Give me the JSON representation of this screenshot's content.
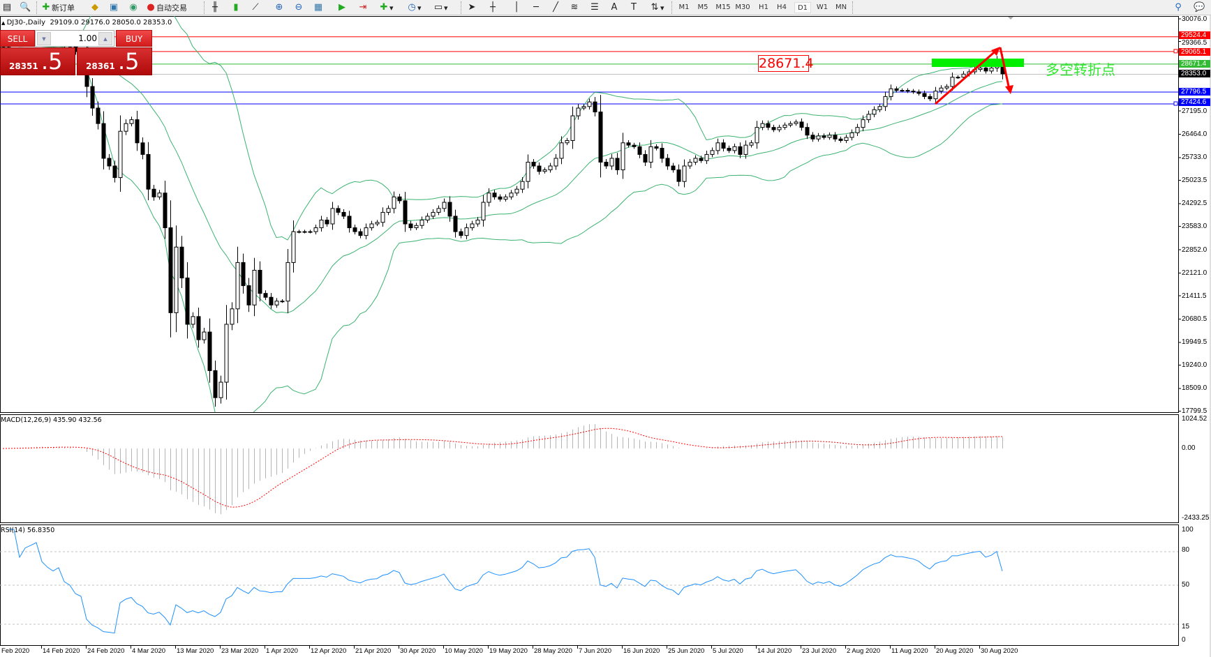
{
  "toolbar": {
    "new_order_label": "新订单",
    "auto_trading_label": "自动交易",
    "icons": [
      "market-watch-icon",
      "navigator-icon",
      "new-order-icon",
      "metaeditor-icon",
      "data-window-icon",
      "signals-icon",
      "auto-trading-icon",
      "bar-chart-icon",
      "candlestick-icon",
      "line-chart-icon",
      "zoom-in-icon",
      "zoom-out-icon",
      "tile-windows-icon",
      "autoscroll-icon",
      "chart-shift-icon",
      "indicators-icon",
      "periods-icon",
      "templates-icon",
      "cursor-icon",
      "crosshair-icon",
      "vertical-line-icon",
      "horizontal-line-icon",
      "trendline-icon",
      "fibonacci-icon",
      "channel-icon",
      "text-icon",
      "text-label-icon",
      "arrows-icon",
      "search-icon",
      "chat-icon"
    ],
    "timeframes": [
      "M1",
      "M5",
      "M15",
      "M30",
      "H1",
      "H4",
      "D1",
      "W1",
      "MN"
    ],
    "selected_timeframe": "D1"
  },
  "chart_header": {
    "symbol": "DJ30-,Daily",
    "ohlc": "29109.0 29176.0 28050.0 28353.0"
  },
  "trade_panel": {
    "sell_label": "SELL",
    "buy_label": "BUY",
    "volume": "1.00",
    "sell_price_main": "28351",
    "sell_price_big": ".5",
    "buy_price_main": "28361",
    "buy_price_big": ".5"
  },
  "price_axis": {
    "ticks": [
      "30076.0",
      "29366.5",
      "27195.0",
      "26464.0",
      "25733.0",
      "25023.5",
      "24292.5",
      "23583.0",
      "22852.0",
      "22121.0",
      "21411.5",
      "20680.5",
      "19949.5",
      "19240.0",
      "18509.0",
      "17799.5"
    ],
    "tags": [
      {
        "value": "29524.4",
        "color": "#ff0000"
      },
      {
        "value": "29065.1",
        "color": "#ff0000"
      },
      {
        "value": "28671.4",
        "color": "#33bb33"
      },
      {
        "value": "28353.0",
        "color": "#000000"
      },
      {
        "value": "27796.5",
        "color": "#0000ff"
      },
      {
        "value": "27424.6",
        "color": "#0000ff"
      }
    ]
  },
  "annotations": {
    "price_label": "28671.4",
    "turning_point_text": "多空转折点",
    "zone_color": "#00ee00",
    "arrow_color": "#ff0000"
  },
  "time_axis": [
    "Feb 2020",
    "14 Feb 2020",
    "24 Feb 2020",
    "4 Mar 2020",
    "13 Mar 2020",
    "23 Mar 2020",
    "1 Apr 2020",
    "12 Apr 2020",
    "21 Apr 2020",
    "30 Apr 2020",
    "10 May 2020",
    "19 May 2020",
    "28 May 2020",
    "7 Jun 2020",
    "16 Jun 2020",
    "25 Jun 2020",
    "5 Jul 2020",
    "14 Jul 2020",
    "23 Jul 2020",
    "2 Aug 2020",
    "11 Aug 2020",
    "20 Aug 2020",
    "30 Aug 2020"
  ],
  "macd": {
    "label": "MACD(12,26,9) 435.90 432.56",
    "axis": [
      "1024.52",
      "0.00",
      "-2433.25"
    ],
    "range": [
      -2433.25,
      1024.52
    ]
  },
  "rsi": {
    "label": "RSI(14) 56.8350",
    "axis": [
      "100",
      "80",
      "50",
      "15",
      "0"
    ],
    "levels": [
      80,
      50,
      15
    ]
  },
  "chart_data": {
    "type": "candlestick",
    "symbol": "DJ30-",
    "timeframe": "Daily",
    "ylim": [
      17799.5,
      30076.0
    ],
    "last_bar": {
      "open": 29109.0,
      "high": 29176.0,
      "low": 28050.0,
      "close": 28353.0
    },
    "indicators": [
      "Bollinger Bands",
      "MACD(12,26,9)",
      "RSI(14)"
    ],
    "horizontal_lines": [
      29524.4,
      29065.1,
      28671.4,
      28353.0,
      27796.5,
      27424.6
    ],
    "close": [
      29200,
      29280,
      29350,
      29300,
      29400,
      29450,
      29520,
      29420,
      29380,
      29350,
      29400,
      29250,
      29200,
      29050,
      28990,
      27959,
      27283,
      26799,
      25712,
      25471,
      25108,
      26558,
      26799,
      26920,
      26196,
      25833,
      24746,
      24504,
      24625,
      23538,
      20880,
      22934,
      21967,
      20518,
      20760,
      20035,
      20276,
      19068,
      18222,
      18706,
      20518,
      21001,
      22451,
      21726,
      21122,
      22209,
      21484,
      21363,
      21122,
      21243,
      21243,
      22451,
      23417,
      23417,
      23417,
      23417,
      23538,
      23779,
      23659,
      24142,
      24021,
      23900,
      23538,
      23417,
      23296,
      23538,
      23659,
      23707,
      24021,
      24142,
      24504,
      24383,
      23659,
      23538,
      23610,
      23779,
      23900,
      24021,
      24142,
      24335,
      23900,
      23417,
      23296,
      23538,
      23659,
      23779,
      24335,
      24625,
      24504,
      24432,
      24504,
      24625,
      24746,
      24987,
      25591,
      25471,
      25301,
      25350,
      25471,
      25712,
      26196,
      26268,
      27041,
      27283,
      27331,
      27476,
      27162,
      25591,
      25471,
      25712,
      25350,
      26196,
      26123,
      26075,
      25833,
      25591,
      26075,
      26027,
      25712,
      25471,
      25350,
      24987,
      25471,
      25591,
      25712,
      25640,
      25833,
      25954,
      26196,
      26027,
      25954,
      26075,
      25833,
      26123,
      26196,
      26679,
      26799,
      26679,
      26606,
      26679,
      26751,
      26799,
      26848,
      26679,
      26437,
      26316,
      26413,
      26365,
      26437,
      26316,
      26268,
      26365,
      26510,
      26679,
      26920,
      27089,
      27234,
      27331,
      27645,
      27887,
      27838,
      27838,
      27814,
      27790,
      27742,
      27645,
      27573,
      27814,
      27911,
      27959,
      28249,
      28249,
      28346,
      28418,
      28491,
      28539,
      28442,
      28539,
      28781,
      28353
    ]
  }
}
